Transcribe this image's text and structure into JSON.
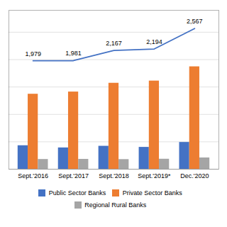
{
  "chart_data": {
    "type": "bar",
    "categories": [
      "Sept.'2016",
      "Sept.'2017",
      "Sept.'2018",
      "Sept.'2019*",
      "Dec.'2020"
    ],
    "series": [
      {
        "name": "Public Sector Banks",
        "color": "#4472C4",
        "values": [
          430,
          390,
          420,
          400,
          490
        ]
      },
      {
        "name": "Private Sector Banks",
        "color": "#ED7D31",
        "values": [
          1370,
          1410,
          1570,
          1610,
          1870
        ]
      },
      {
        "name": "Regional Rural Banks",
        "color": "#A5A5A5",
        "values": [
          179,
          181,
          177,
          184,
          207
        ]
      },
      {
        "type": "line",
        "color": "#4472C4",
        "values": [
          1979,
          1981,
          2167,
          2194,
          2567
        ],
        "data_labels": true,
        "value_labels": [
          "1,979",
          "1,981",
          "2,167",
          "2,194",
          "2,567"
        ]
      }
    ],
    "ylim": [
      0,
      2900
    ],
    "yticks": [
      0,
      500,
      1000,
      1500,
      2000,
      2500
    ],
    "grid": true,
    "legend": "bottom",
    "tick_labels": "x"
  }
}
